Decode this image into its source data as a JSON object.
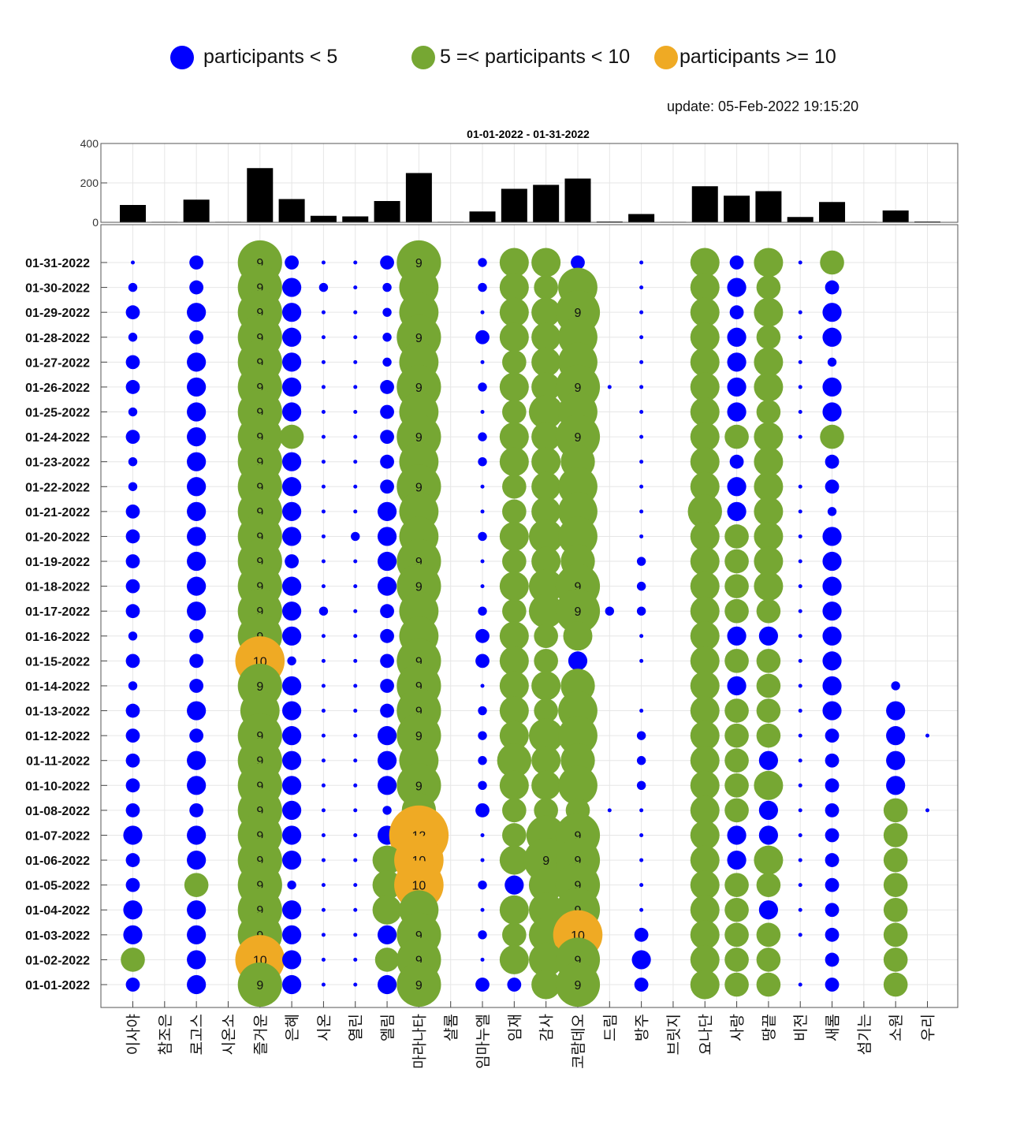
{
  "legend": [
    {
      "label": "participants < 5",
      "color": "#0000ff"
    },
    {
      "label": "5 =< participants < 10",
      "color": "#76a733"
    },
    {
      "label": "participants >= 10",
      "color": "#efaa24"
    }
  ],
  "update_text": "update: 05-Feb-2022 19:15:20",
  "colors": {
    "blue": "#0000ff",
    "green": "#76a733",
    "orange": "#efaa24",
    "bar": "#000000",
    "grid": "#e6e6e6"
  },
  "chart_data": [
    {
      "type": "bar",
      "title": "01-01-2022  - 01-31-2022",
      "ylim": [
        0,
        400
      ],
      "yticks": [
        "0",
        "200",
        "400"
      ],
      "categories": [
        "이사야",
        "참조은",
        "로고스",
        "시온소",
        "즐거운",
        "은혜",
        "시온",
        "열린",
        "엘림",
        "마라나타",
        "샬롬",
        "임마누엘",
        "임재",
        "감사",
        "코람데오",
        "드림",
        "방주",
        "브릿지",
        "요나단",
        "사랑",
        "땅끝",
        "비전",
        "새롬",
        "섬기는",
        "소원",
        "우리"
      ],
      "values": [
        88,
        0,
        115,
        0,
        275,
        118,
        33,
        30,
        108,
        250,
        0,
        55,
        170,
        190,
        222,
        4,
        42,
        0,
        183,
        135,
        158,
        27,
        103,
        0,
        60,
        3
      ],
      "grid": true
    },
    {
      "type": "scatter",
      "xlabel": "",
      "ylabel": "",
      "grid": true,
      "note": "bubble size and color encode number of participants per date and group; label shown when 9 or more",
      "categories": [
        "이사야",
        "참조은",
        "로고스",
        "시온소",
        "즐거운",
        "은혜",
        "시온",
        "열린",
        "엘림",
        "마라나타",
        "샬롬",
        "임마누엘",
        "임재",
        "감사",
        "코람데오",
        "드림",
        "방주",
        "브릿지",
        "요나단",
        "사랑",
        "땅끝",
        "비전",
        "새롬",
        "섬기는",
        "소원",
        "우리"
      ],
      "dates": [
        "01-31-2022",
        "01-30-2022",
        "01-29-2022",
        "01-28-2022",
        "01-27-2022",
        "01-26-2022",
        "01-25-2022",
        "01-24-2022",
        "01-23-2022",
        "01-22-2022",
        "01-21-2022",
        "01-20-2022",
        "01-19-2022",
        "01-18-2022",
        "01-17-2022",
        "01-16-2022",
        "01-15-2022",
        "01-14-2022",
        "01-13-2022",
        "01-12-2022",
        "01-11-2022",
        "01-10-2022",
        "01-08-2022",
        "01-07-2022",
        "01-06-2022",
        "01-05-2022",
        "01-04-2022",
        "01-03-2022",
        "01-02-2022",
        "01-01-2022"
      ],
      "values": [
        [
          1,
          0,
          3,
          0,
          9,
          3,
          1,
          1,
          3,
          9,
          0,
          2,
          6,
          6,
          3,
          0,
          1,
          0,
          6,
          3,
          6,
          1,
          5,
          0,
          0,
          0
        ],
        [
          2,
          0,
          3,
          0,
          9,
          4,
          2,
          1,
          2,
          8,
          0,
          2,
          6,
          5,
          8,
          0,
          1,
          0,
          6,
          4,
          5,
          0,
          3,
          0,
          0,
          0
        ],
        [
          3,
          0,
          4,
          0,
          9,
          4,
          1,
          1,
          2,
          8,
          0,
          1,
          6,
          6,
          9,
          0,
          1,
          0,
          6,
          3,
          6,
          1,
          4,
          0,
          0,
          0
        ],
        [
          2,
          0,
          3,
          0,
          9,
          4,
          1,
          1,
          2,
          9,
          0,
          3,
          6,
          6,
          8,
          0,
          1,
          0,
          6,
          4,
          5,
          1,
          4,
          0,
          0,
          0
        ],
        [
          3,
          0,
          4,
          0,
          9,
          4,
          1,
          1,
          2,
          8,
          0,
          1,
          5,
          6,
          8,
          0,
          1,
          0,
          6,
          4,
          6,
          1,
          2,
          0,
          0,
          0
        ],
        [
          3,
          0,
          4,
          0,
          9,
          4,
          1,
          1,
          3,
          9,
          0,
          2,
          6,
          6,
          9,
          1,
          1,
          0,
          6,
          4,
          6,
          1,
          4,
          0,
          0,
          0
        ],
        [
          2,
          0,
          4,
          0,
          9,
          4,
          1,
          1,
          3,
          8,
          0,
          1,
          5,
          7,
          8,
          0,
          1,
          0,
          6,
          4,
          5,
          1,
          4,
          0,
          0,
          0
        ],
        [
          3,
          0,
          4,
          0,
          9,
          5,
          1,
          1,
          3,
          9,
          0,
          2,
          6,
          6,
          9,
          0,
          1,
          0,
          6,
          5,
          6,
          1,
          5,
          0,
          0,
          0
        ],
        [
          2,
          0,
          4,
          0,
          9,
          4,
          1,
          1,
          3,
          8,
          0,
          2,
          6,
          6,
          7,
          0,
          1,
          0,
          6,
          3,
          6,
          0,
          3,
          0,
          0,
          0
        ],
        [
          2,
          0,
          4,
          0,
          9,
          4,
          1,
          1,
          3,
          9,
          0,
          1,
          5,
          6,
          8,
          0,
          1,
          0,
          6,
          4,
          6,
          1,
          3,
          0,
          0,
          0
        ],
        [
          3,
          0,
          4,
          0,
          9,
          4,
          1,
          1,
          4,
          8,
          0,
          1,
          5,
          6,
          8,
          0,
          1,
          0,
          7,
          4,
          6,
          1,
          2,
          0,
          0,
          0
        ],
        [
          3,
          0,
          4,
          0,
          9,
          4,
          1,
          2,
          4,
          8,
          0,
          2,
          6,
          7,
          8,
          0,
          1,
          0,
          6,
          5,
          6,
          1,
          4,
          0,
          0,
          0
        ],
        [
          3,
          0,
          4,
          0,
          9,
          3,
          1,
          1,
          4,
          9,
          0,
          1,
          5,
          6,
          7,
          0,
          2,
          0,
          6,
          5,
          6,
          1,
          4,
          0,
          0,
          0
        ],
        [
          3,
          0,
          4,
          0,
          9,
          4,
          1,
          1,
          4,
          9,
          0,
          1,
          6,
          7,
          9,
          0,
          2,
          0,
          6,
          5,
          6,
          1,
          4,
          0,
          0,
          0
        ],
        [
          3,
          0,
          4,
          0,
          9,
          4,
          2,
          1,
          3,
          8,
          0,
          2,
          5,
          7,
          9,
          2,
          2,
          0,
          6,
          5,
          5,
          1,
          4,
          0,
          0,
          0
        ],
        [
          2,
          0,
          3,
          0,
          9,
          4,
          1,
          1,
          3,
          8,
          0,
          3,
          6,
          5,
          6,
          0,
          1,
          0,
          6,
          4,
          4,
          1,
          4,
          0,
          0,
          0
        ],
        [
          3,
          0,
          3,
          0,
          10,
          2,
          1,
          1,
          3,
          9,
          0,
          3,
          6,
          5,
          4,
          0,
          1,
          0,
          6,
          5,
          5,
          1,
          4,
          0,
          0,
          0
        ],
        [
          2,
          0,
          3,
          0,
          9,
          4,
          1,
          1,
          3,
          9,
          0,
          1,
          6,
          6,
          7,
          0,
          0,
          0,
          6,
          4,
          5,
          1,
          4,
          0,
          2,
          0
        ],
        [
          3,
          0,
          4,
          0,
          8,
          4,
          1,
          1,
          3,
          9,
          0,
          2,
          6,
          5,
          8,
          0,
          1,
          0,
          6,
          5,
          5,
          1,
          4,
          0,
          4,
          0
        ],
        [
          3,
          0,
          3,
          0,
          9,
          4,
          1,
          1,
          4,
          9,
          0,
          2,
          6,
          7,
          8,
          0,
          2,
          0,
          6,
          5,
          5,
          1,
          3,
          0,
          4,
          1
        ],
        [
          3,
          0,
          4,
          0,
          9,
          4,
          1,
          1,
          4,
          8,
          0,
          2,
          7,
          6,
          7,
          0,
          2,
          0,
          6,
          5,
          4,
          1,
          3,
          0,
          4,
          0
        ],
        [
          3,
          0,
          4,
          0,
          9,
          4,
          1,
          1,
          4,
          9,
          0,
          2,
          6,
          6,
          8,
          0,
          2,
          0,
          6,
          5,
          6,
          1,
          3,
          0,
          4,
          0
        ],
        [
          3,
          0,
          3,
          0,
          9,
          4,
          1,
          1,
          2,
          7,
          0,
          3,
          5,
          5,
          5,
          1,
          1,
          0,
          6,
          5,
          4,
          1,
          3,
          0,
          5,
          1
        ],
        [
          4,
          0,
          4,
          0,
          9,
          4,
          1,
          1,
          4,
          12,
          0,
          1,
          5,
          8,
          9,
          0,
          1,
          0,
          6,
          4,
          4,
          1,
          3,
          0,
          5,
          0
        ],
        [
          3,
          0,
          4,
          0,
          9,
          4,
          1,
          1,
          6,
          10,
          0,
          1,
          6,
          9,
          9,
          0,
          1,
          0,
          6,
          4,
          6,
          1,
          3,
          0,
          5,
          0
        ],
        [
          3,
          0,
          5,
          0,
          9,
          2,
          1,
          1,
          6,
          10,
          0,
          2,
          4,
          7,
          9,
          0,
          1,
          0,
          6,
          5,
          5,
          1,
          3,
          0,
          5,
          0
        ],
        [
          4,
          0,
          4,
          0,
          9,
          4,
          1,
          1,
          6,
          8,
          0,
          1,
          6,
          7,
          9,
          0,
          1,
          0,
          6,
          5,
          4,
          1,
          3,
          0,
          5,
          0
        ],
        [
          4,
          0,
          4,
          0,
          9,
          4,
          1,
          1,
          4,
          9,
          0,
          2,
          5,
          7,
          10,
          0,
          3,
          0,
          6,
          5,
          5,
          1,
          3,
          0,
          5,
          0
        ],
        [
          5,
          0,
          4,
          0,
          10,
          4,
          1,
          1,
          5,
          9,
          0,
          1,
          6,
          7,
          9,
          0,
          4,
          0,
          6,
          5,
          5,
          0,
          3,
          0,
          5,
          0
        ],
        [
          3,
          0,
          4,
          0,
          9,
          4,
          1,
          1,
          4,
          9,
          0,
          3,
          3,
          6,
          9,
          0,
          3,
          0,
          6,
          5,
          5,
          1,
          3,
          0,
          5,
          0
        ]
      ]
    }
  ]
}
